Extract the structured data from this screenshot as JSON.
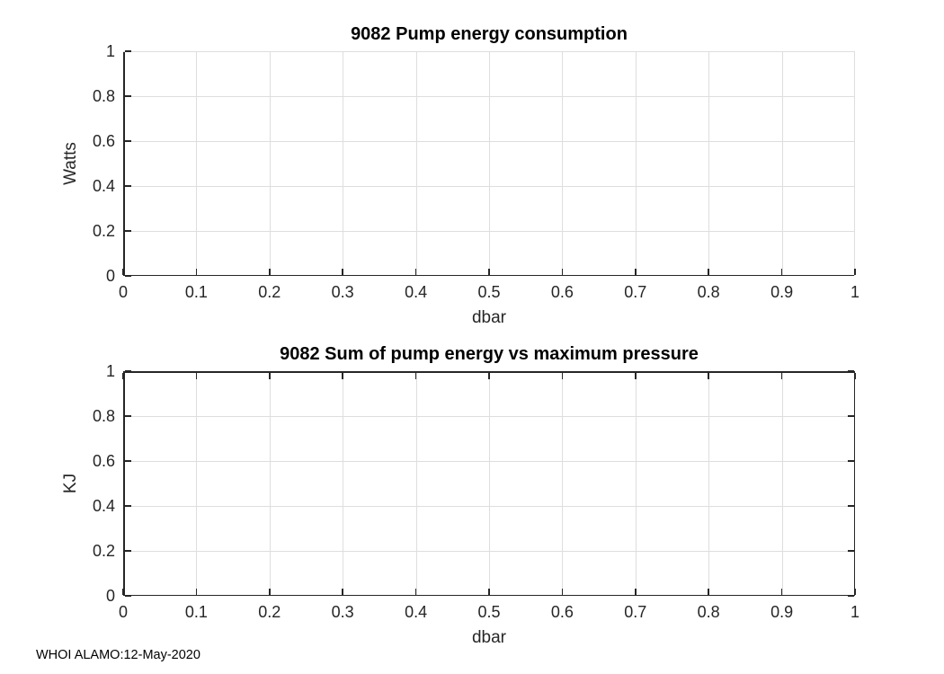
{
  "figure": {
    "footer": "WHOI ALAMO:12-May-2020"
  },
  "colors": {
    "axis": "#262626",
    "grid": "#dedede",
    "background": "#ffffff",
    "title": "#000000"
  },
  "chart_data": [
    {
      "type": "line",
      "title": "9082 Pump energy consumption",
      "xlabel": "dbar",
      "ylabel": "Watts",
      "xlim": [
        0,
        1
      ],
      "ylim": [
        0,
        1
      ],
      "xticks": [
        0,
        0.1,
        0.2,
        0.3,
        0.4,
        0.5,
        0.6,
        0.7,
        0.8,
        0.9,
        1
      ],
      "yticks": [
        0,
        0.2,
        0.4,
        0.6,
        0.8,
        1
      ],
      "grid": true,
      "box": false,
      "series": []
    },
    {
      "type": "line",
      "title": "9082 Sum of pump energy vs maximum pressure",
      "xlabel": "dbar",
      "ylabel": "KJ",
      "xlim": [
        0,
        1
      ],
      "ylim": [
        0,
        1
      ],
      "xticks": [
        0,
        0.1,
        0.2,
        0.3,
        0.4,
        0.5,
        0.6,
        0.7,
        0.8,
        0.9,
        1
      ],
      "yticks": [
        0,
        0.2,
        0.4,
        0.6,
        0.8,
        1
      ],
      "grid": true,
      "box": true,
      "series": []
    }
  ]
}
